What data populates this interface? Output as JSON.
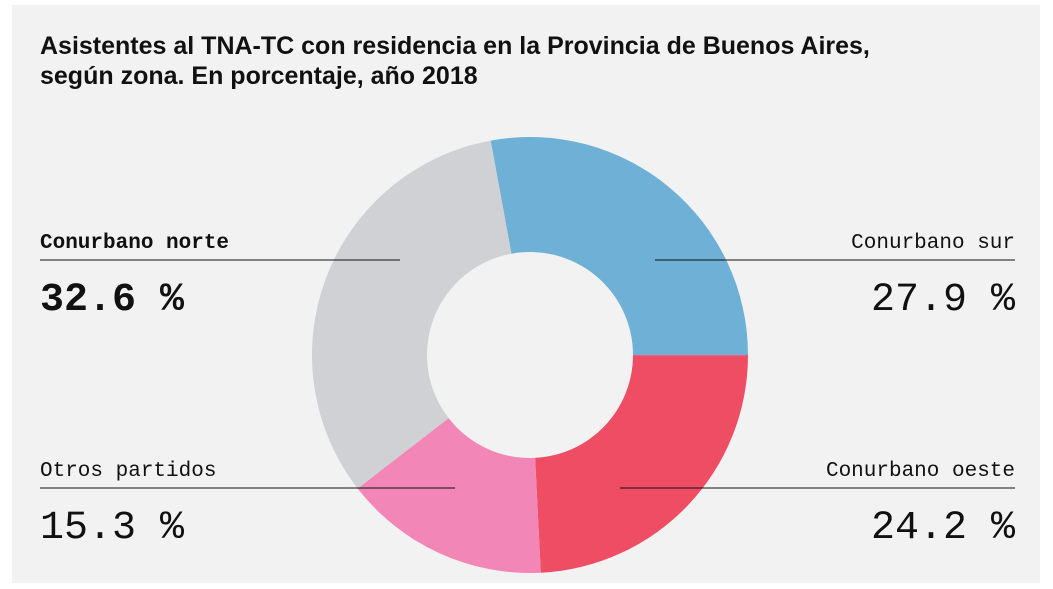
{
  "chart_data": {
    "type": "pie",
    "title": [
      "Asistentes al TNA-TC con residencia en la Provincia de Buenos Aires,",
      "según zona. En porcentaje, año 2018"
    ],
    "categories": [
      "Conurbano sur",
      "Conurbano oeste",
      "Otros partidos",
      "Conurbano norte"
    ],
    "values": [
      27.9,
      24.2,
      15.3,
      32.6
    ],
    "value_labels": [
      "27.9 %",
      "24.2 %",
      "15.3 %",
      "32.6 %"
    ],
    "colors": [
      "#6fb1d6",
      "#ef4d63",
      "#f287b7",
      "#d0d1d4"
    ],
    "highlight": "Conurbano norte"
  }
}
